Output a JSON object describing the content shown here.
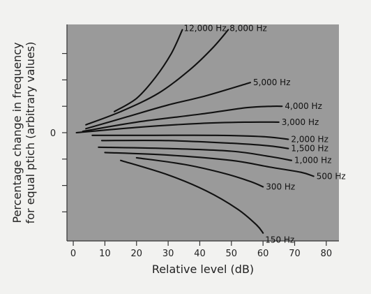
{
  "chart_data": {
    "type": "line",
    "xlabel": "Relative level (dB)",
    "ylabel_lines": [
      "Percentage change in frequency",
      "for equal ptich (arbitrary values)"
    ],
    "xlim": [
      -2,
      84
    ],
    "ylim": [
      -4.1,
      4.1
    ],
    "xticks": [
      0,
      10,
      20,
      30,
      40,
      50,
      60,
      70,
      80
    ],
    "xtick_labels": [
      "0",
      "10",
      "20",
      "30",
      "40",
      "50",
      "60",
      "70",
      "80"
    ],
    "yticks": [
      -3,
      -2,
      -1,
      0,
      1,
      2,
      3
    ],
    "ytick_labels": [
      "",
      "",
      "",
      "0",
      "",
      "",
      ""
    ],
    "grid": false,
    "colors": {
      "plot_bg": "#9a9a9a",
      "line": "#111111",
      "page_bg": "#f2f2f0"
    },
    "series": [
      {
        "name": "12,000 Hz",
        "points": [
          [
            13,
            0.8
          ],
          [
            20,
            1.3
          ],
          [
            26,
            2.1
          ],
          [
            31,
            3.0
          ],
          [
            34.5,
            3.9
          ]
        ]
      },
      {
        "name": "8,000 Hz",
        "points": [
          [
            4,
            0.3
          ],
          [
            15,
            0.8
          ],
          [
            27,
            1.5
          ],
          [
            37,
            2.4
          ],
          [
            44,
            3.2
          ],
          [
            49,
            3.9
          ]
        ]
      },
      {
        "name": "5,000 Hz",
        "points": [
          [
            4,
            0.15
          ],
          [
            17,
            0.6
          ],
          [
            30,
            1.05
          ],
          [
            42,
            1.4
          ],
          [
            56,
            1.9
          ]
        ]
      },
      {
        "name": "4,000 Hz",
        "points": [
          [
            3,
            0.05
          ],
          [
            20,
            0.4
          ],
          [
            40,
            0.7
          ],
          [
            55,
            0.95
          ],
          [
            63,
            1.0
          ],
          [
            66,
            1.0
          ]
        ]
      },
      {
        "name": "3,000 Hz",
        "points": [
          [
            1,
            0.0
          ],
          [
            20,
            0.2
          ],
          [
            40,
            0.35
          ],
          [
            55,
            0.4
          ],
          [
            65,
            0.4
          ]
        ]
      },
      {
        "name": "2,000 Hz",
        "points": [
          [
            6,
            -0.1
          ],
          [
            25,
            -0.1
          ],
          [
            45,
            -0.1
          ],
          [
            60,
            -0.15
          ],
          [
            68,
            -0.25
          ]
        ]
      },
      {
        "name": "1,500 Hz",
        "points": [
          [
            9,
            -0.3
          ],
          [
            30,
            -0.3
          ],
          [
            50,
            -0.4
          ],
          [
            62,
            -0.5
          ],
          [
            68,
            -0.6
          ]
        ]
      },
      {
        "name": "1,000 Hz",
        "points": [
          [
            8,
            -0.55
          ],
          [
            30,
            -0.6
          ],
          [
            50,
            -0.7
          ],
          [
            62,
            -0.9
          ],
          [
            69,
            -1.05
          ]
        ]
      },
      {
        "name": "500 Hz",
        "points": [
          [
            10,
            -0.75
          ],
          [
            30,
            -0.85
          ],
          [
            50,
            -1.05
          ],
          [
            62,
            -1.3
          ],
          [
            72,
            -1.5
          ],
          [
            76,
            -1.65
          ]
        ]
      },
      {
        "name": "300 Hz",
        "points": [
          [
            20,
            -0.95
          ],
          [
            35,
            -1.2
          ],
          [
            48,
            -1.55
          ],
          [
            56,
            -1.85
          ],
          [
            60,
            -2.05
          ]
        ]
      },
      {
        "name": "150 Hz",
        "points": [
          [
            15,
            -1.05
          ],
          [
            30,
            -1.6
          ],
          [
            42,
            -2.2
          ],
          [
            52,
            -2.9
          ],
          [
            58,
            -3.5
          ],
          [
            60,
            -3.8
          ]
        ]
      }
    ]
  }
}
